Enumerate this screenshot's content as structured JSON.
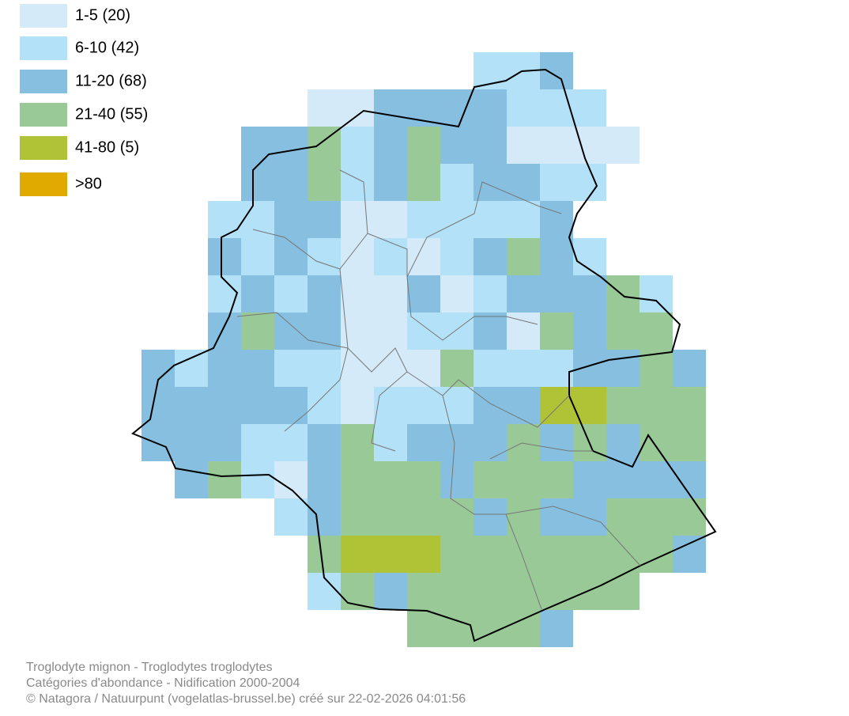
{
  "legend": {
    "items": [
      {
        "label": "1-5 (20)",
        "color": "#d4eaf9"
      },
      {
        "label": "6-10 (42)",
        "color": "#b3e1f8"
      },
      {
        "label": "11-20 (68)",
        "color": "#86bfdf"
      },
      {
        "label": "21-40 (55)",
        "color": "#98c996"
      },
      {
        "label": "41-80 (5)",
        "color": "#b0c236"
      },
      {
        "label": ">80",
        "color": "#e0aa00"
      }
    ]
  },
  "grid": {
    "rows": [
      [
        null,
        null,
        null,
        null,
        null,
        null,
        null,
        null,
        null,
        null,
        1,
        1,
        2,
        null,
        null,
        null,
        null,
        null
      ],
      [
        null,
        null,
        null,
        null,
        null,
        0,
        0,
        2,
        2,
        2,
        2,
        1,
        1,
        1,
        null,
        null,
        null,
        null
      ],
      [
        null,
        null,
        null,
        2,
        2,
        3,
        1,
        2,
        3,
        2,
        2,
        0,
        0,
        0,
        0,
        null,
        null,
        null
      ],
      [
        null,
        null,
        null,
        2,
        2,
        3,
        1,
        2,
        3,
        1,
        2,
        2,
        1,
        1,
        null,
        null,
        null,
        null
      ],
      [
        null,
        null,
        1,
        1,
        2,
        2,
        0,
        0,
        1,
        1,
        1,
        1,
        2,
        null,
        null,
        null,
        null,
        null
      ],
      [
        null,
        null,
        2,
        1,
        2,
        1,
        0,
        1,
        0,
        1,
        2,
        3,
        2,
        1,
        null,
        null,
        null,
        null
      ],
      [
        null,
        null,
        1,
        2,
        1,
        2,
        0,
        0,
        2,
        0,
        1,
        2,
        2,
        2,
        3,
        1,
        null,
        null
      ],
      [
        null,
        null,
        2,
        3,
        2,
        2,
        0,
        0,
        1,
        1,
        2,
        0,
        3,
        2,
        3,
        3,
        null,
        null
      ],
      [
        2,
        1,
        2,
        2,
        1,
        1,
        0,
        0,
        0,
        3,
        1,
        1,
        1,
        2,
        2,
        3,
        2,
        null
      ],
      [
        2,
        2,
        2,
        2,
        2,
        1,
        0,
        1,
        1,
        1,
        2,
        2,
        4,
        4,
        3,
        3,
        3,
        null
      ],
      [
        2,
        2,
        2,
        1,
        1,
        2,
        3,
        1,
        2,
        2,
        2,
        3,
        2,
        3,
        2,
        3,
        3,
        null
      ],
      [
        null,
        2,
        3,
        1,
        0,
        2,
        3,
        3,
        3,
        2,
        3,
        3,
        3,
        2,
        2,
        2,
        2,
        null
      ],
      [
        null,
        null,
        null,
        null,
        1,
        2,
        3,
        3,
        3,
        3,
        2,
        3,
        2,
        2,
        3,
        3,
        3,
        null
      ],
      [
        null,
        null,
        null,
        null,
        null,
        3,
        4,
        4,
        4,
        3,
        3,
        3,
        3,
        3,
        3,
        3,
        2,
        null
      ],
      [
        null,
        null,
        null,
        null,
        null,
        1,
        3,
        2,
        3,
        3,
        3,
        3,
        3,
        3,
        3,
        null,
        null,
        null
      ],
      [
        null,
        null,
        null,
        null,
        null,
        null,
        null,
        null,
        3,
        3,
        3,
        3,
        2,
        null,
        null,
        null,
        null,
        null
      ]
    ]
  },
  "footer": {
    "lines": [
      "Troglodyte mignon - Troglodytes troglodytes",
      "Catégories d'abondance - Nidification 2000-2004",
      "© Natagora / Natuurpunt (vogelatlas-brussel.be) créé sur 22-02-2026 04:01:56"
    ]
  }
}
